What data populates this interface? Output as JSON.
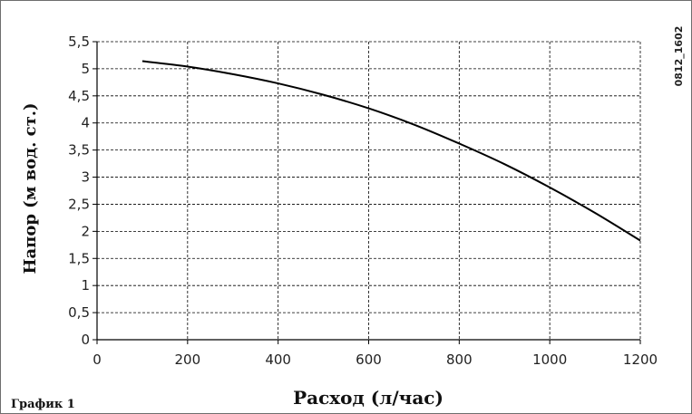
{
  "chart_data": {
    "type": "line",
    "xlabel": "Расход (л/час)",
    "ylabel": "Напор (м вод. ст.)",
    "xlim": [
      0,
      1200
    ],
    "ylim": [
      0,
      5.5
    ],
    "x_ticks": [
      "0",
      "200",
      "400",
      "600",
      "800",
      "1000",
      "1200"
    ],
    "y_ticks": [
      "0",
      "0,5",
      "1",
      "1,5",
      "2",
      "2,5",
      "3",
      "3,5",
      "4",
      "4,5",
      "5",
      "5,5"
    ],
    "grid": true,
    "series": [
      {
        "x": [
          100,
          200,
          300,
          400,
          500,
          600,
          700,
          800,
          900,
          1000,
          1100,
          1200
        ],
        "values": [
          5.14,
          5.04,
          4.9,
          4.73,
          4.52,
          4.27,
          3.97,
          3.62,
          3.24,
          2.81,
          2.34,
          1.83
        ]
      }
    ],
    "line_color": "#000000",
    "grid_color": "#000000"
  },
  "caption": "График 1",
  "image_code": "0812_1602"
}
